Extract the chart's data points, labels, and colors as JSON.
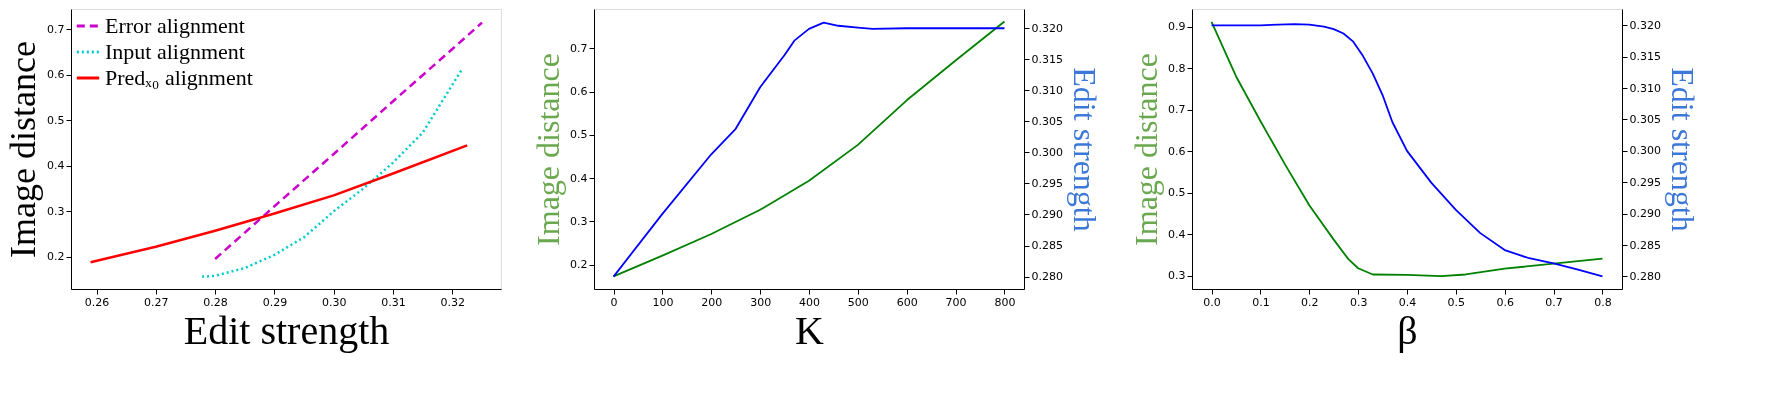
{
  "chart_data": [
    {
      "type": "line",
      "xlabel": "Edit strength",
      "ylabel": "Image distance",
      "legend": "top left",
      "grid": false,
      "xlim": [
        0.2557,
        0.3282
      ],
      "xticks": [
        0.26,
        0.27,
        0.28,
        0.29,
        {
          "value": 0.3,
          "label": "0.30"
        },
        0.31,
        0.32
      ],
      "ylim": [
        0.129,
        0.745
      ],
      "yticks": [
        0.2,
        0.3,
        0.4,
        0.5,
        0.6,
        0.7
      ],
      "series": [
        {
          "name": "Error alignment",
          "color": "#cc00cc",
          "line_style": "dashed",
          "x": [
            0.28,
            0.29,
            0.3,
            0.31,
            0.32,
            0.325
          ],
          "values": [
            0.195,
            0.311,
            0.426,
            0.542,
            0.657,
            0.715
          ]
        },
        {
          "name": "Input alignment",
          "color": "#00cccc",
          "line_style": "dotted",
          "x": [
            0.2778,
            0.28,
            0.285,
            0.29,
            0.295,
            0.3,
            0.305,
            0.31,
            0.315,
            0.3215
          ],
          "values": [
            0.156,
            0.158,
            0.175,
            0.204,
            0.243,
            0.3,
            0.35,
            0.407,
            0.473,
            0.61
          ]
        },
        {
          "name": "Predₓ₀ alignment",
          "color": "#ff0000",
          "line_style": "solid",
          "x": [
            0.259,
            0.27,
            0.28,
            0.29,
            0.3,
            0.31,
            0.3225
          ],
          "values": [
            0.188,
            0.222,
            0.257,
            0.295,
            0.335,
            0.383,
            0.445
          ]
        }
      ]
    },
    {
      "type": "line",
      "xlabel": "K",
      "ylabel": "Image distance",
      "y2label": "Edit strength",
      "grid": false,
      "xlim": [
        -40,
        840
      ],
      "xticks": [
        0,
        100,
        200,
        300,
        400,
        500,
        600,
        700,
        800
      ],
      "ylim": [
        0.144,
        0.791
      ],
      "yticks": [
        0.2,
        0.3,
        0.4,
        0.5,
        0.6,
        0.7
      ],
      "y2lim": [
        0.278,
        0.3231
      ],
      "y2ticks": [
        {
          "value": 0.28,
          "label": "0.280"
        },
        0.285,
        {
          "value": 0.29,
          "label": "0.290"
        },
        0.295,
        {
          "value": 0.3,
          "label": "0.300"
        },
        0.305,
        {
          "value": 0.31,
          "label": "0.310"
        },
        0.315,
        {
          "value": 0.32,
          "label": "0.320"
        }
      ],
      "series": [
        {
          "color": "#008000",
          "x": [
            0,
            100,
            200,
            300,
            400,
            500,
            600,
            700,
            800
          ],
          "values": [
            0.173,
            0.221,
            0.271,
            0.327,
            0.394,
            0.477,
            0.58,
            0.672,
            0.762
          ]
        },
        {
          "color": "#0000ff",
          "axis": "y2",
          "x": [
            0,
            100,
            200,
            250,
            300,
            350,
            370,
            400,
            430,
            460,
            500,
            530,
            600,
            700,
            800
          ],
          "values": [
            0.28,
            0.2901,
            0.2997,
            0.3038,
            0.3105,
            0.3157,
            0.318,
            0.3199,
            0.3209,
            0.3204,
            0.3201,
            0.3199,
            0.32,
            0.32,
            0.32
          ]
        }
      ]
    },
    {
      "type": "line",
      "xlabel": "β",
      "ylabel": "Image distance",
      "y2label": "Edit strength",
      "grid": false,
      "xlim": [
        -0.04,
        0.84
      ],
      "xticks": [
        {
          "value": 0,
          "label": "0.0"
        },
        0.1,
        0.2,
        0.3,
        0.4,
        0.5,
        0.6,
        0.7,
        0.8
      ],
      "ylim": [
        0.268,
        0.943
      ],
      "yticks": [
        0.3,
        0.4,
        0.5,
        0.6,
        0.7,
        0.8,
        0.9
      ],
      "y2lim": [
        0.278,
        0.3226
      ],
      "y2ticks": [
        {
          "value": 0.28,
          "label": "0.280"
        },
        0.285,
        {
          "value": 0.29,
          "label": "0.290"
        },
        0.295,
        {
          "value": 0.3,
          "label": "0.300"
        },
        0.305,
        {
          "value": 0.31,
          "label": "0.310"
        },
        0.315,
        {
          "value": 0.32,
          "label": "0.320"
        }
      ],
      "series": [
        {
          "color": "#008000",
          "x": [
            0,
            0.05,
            0.1,
            0.15,
            0.2,
            0.25,
            0.28,
            0.3,
            0.33,
            0.4,
            0.47,
            0.52,
            0.6,
            0.7,
            0.8
          ],
          "values": [
            0.912,
            0.781,
            0.673,
            0.569,
            0.47,
            0.387,
            0.34,
            0.318,
            0.303,
            0.302,
            0.299,
            0.303,
            0.317,
            0.329,
            0.341
          ]
        },
        {
          "color": "#0000ff",
          "axis": "y2",
          "x": [
            0,
            0.1,
            0.17,
            0.2,
            0.23,
            0.25,
            0.27,
            0.29,
            0.31,
            0.33,
            0.35,
            0.37,
            0.4,
            0.45,
            0.5,
            0.55,
            0.6,
            0.65,
            0.7,
            0.75,
            0.8
          ],
          "values": [
            0.32,
            0.32,
            0.3202,
            0.3201,
            0.3198,
            0.3194,
            0.3187,
            0.3174,
            0.3151,
            0.3123,
            0.3089,
            0.3046,
            0.3,
            0.2949,
            0.2906,
            0.2869,
            0.2842,
            0.2829,
            0.2821,
            0.2811,
            0.28
          ]
        }
      ]
    }
  ]
}
